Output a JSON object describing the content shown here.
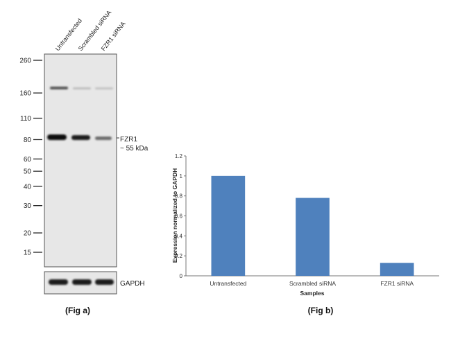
{
  "blot": {
    "lanes": [
      "Untransfected",
      "Scrambled siRNA",
      "FZR1 siRNA"
    ],
    "markers": [
      "260",
      "160",
      "110",
      "80",
      "60",
      "50",
      "40",
      "30",
      "20",
      "15"
    ],
    "marker_kda": [
      260,
      160,
      110,
      80,
      60,
      50,
      40,
      30,
      20,
      15
    ],
    "band_label_line1": "FZR1",
    "band_label_line2": "~ 55 kDa",
    "loading_label": "GAPDH",
    "caption": "(Fig a)"
  },
  "chart_data": {
    "type": "bar",
    "categories": [
      "Untransfected",
      "Scrambled siRNA",
      "FZR1 siRNA"
    ],
    "values": [
      1.0,
      0.78,
      0.13
    ],
    "title": "",
    "xlabel": "Samples",
    "ylabel": "Expression  normalized to GAPDH",
    "ylim": [
      0,
      1.2
    ],
    "yticks": [
      "0",
      "0.2",
      "0.4",
      "0.6",
      "0.8",
      "1",
      "1.2"
    ],
    "ytick_values": [
      0,
      0.2,
      0.4,
      0.6,
      0.8,
      1.0,
      1.2
    ],
    "grid": false,
    "bar_color": "#4f81bd",
    "caption": "(Fig b)"
  }
}
